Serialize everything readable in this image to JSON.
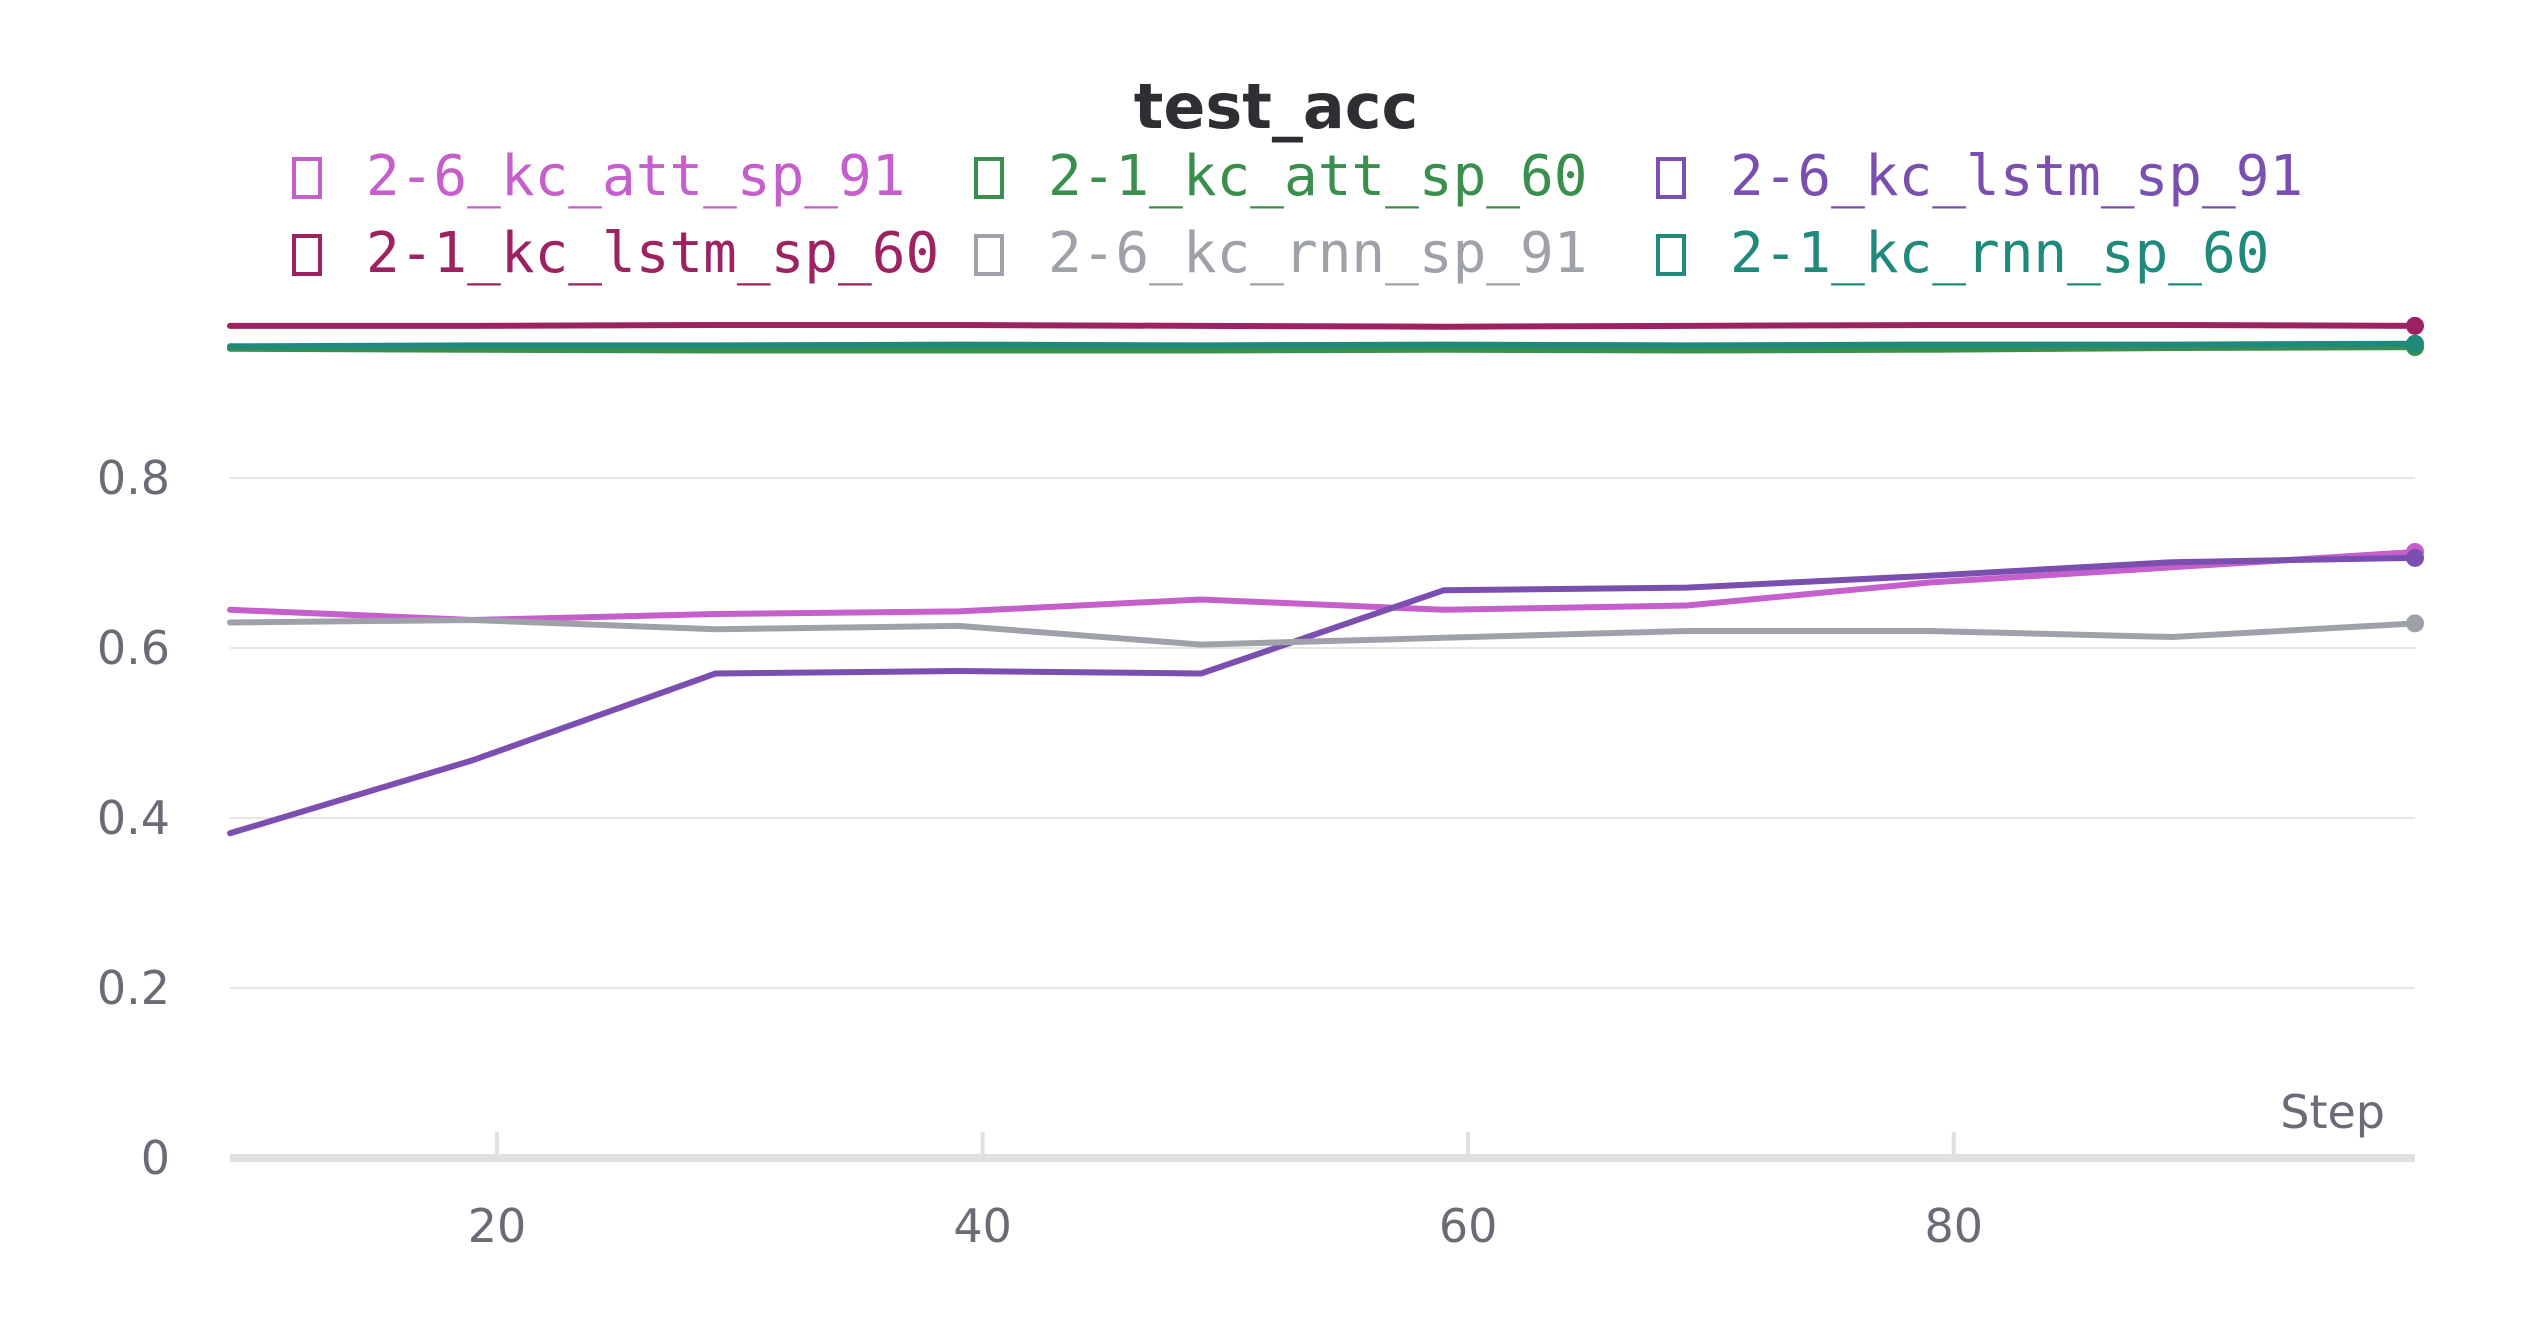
{
  "chart_data": {
    "type": "line",
    "title": "test_acc",
    "xlabel": "Step",
    "ylabel": "",
    "xlim": [
      9,
      99
    ],
    "ylim": [
      0,
      0.97
    ],
    "x_ticks": [
      20,
      40,
      60,
      80
    ],
    "y_ticks": [
      0,
      0.2,
      0.4,
      0.6,
      0.8
    ],
    "y_tick_labels": [
      "0",
      "0.2",
      "0.4",
      "0.6",
      "0.8"
    ],
    "grid": true,
    "legend_position": "top",
    "x": [
      9,
      19,
      29,
      39,
      49,
      59,
      69,
      79,
      89,
      99
    ],
    "series": [
      {
        "name": "2-6_kc_att_sp_91",
        "color": "#c45fcc",
        "values": [
          0.645,
          0.633,
          0.64,
          0.643,
          0.657,
          0.645,
          0.65,
          0.677,
          0.695,
          0.713
        ]
      },
      {
        "name": "2-1_kc_att_sp_60",
        "color": "#3b8f4e",
        "values": [
          0.952,
          0.951,
          0.95,
          0.95,
          0.95,
          0.951,
          0.95,
          0.951,
          0.953,
          0.954
        ]
      },
      {
        "name": "2-6_kc_lstm_sp_91",
        "color": "#7a4fb0",
        "values": [
          0.382,
          0.468,
          0.57,
          0.573,
          0.57,
          0.668,
          0.671,
          0.685,
          0.701,
          0.706
        ]
      },
      {
        "name": "2-1_kc_lstm_sp_60",
        "color": "#9c2261",
        "values": [
          0.979,
          0.979,
          0.98,
          0.98,
          0.979,
          0.978,
          0.979,
          0.98,
          0.98,
          0.979
        ]
      },
      {
        "name": "2-6_kc_rnn_sp_91",
        "color": "#9ea2a8",
        "values": [
          0.63,
          0.633,
          0.622,
          0.626,
          0.604,
          0.612,
          0.62,
          0.62,
          0.613,
          0.629
        ]
      },
      {
        "name": "2-1_kc_rnn_sp_60",
        "color": "#1f8a7c",
        "values": [
          0.955,
          0.956,
          0.956,
          0.957,
          0.956,
          0.957,
          0.956,
          0.957,
          0.957,
          0.958
        ]
      }
    ]
  }
}
